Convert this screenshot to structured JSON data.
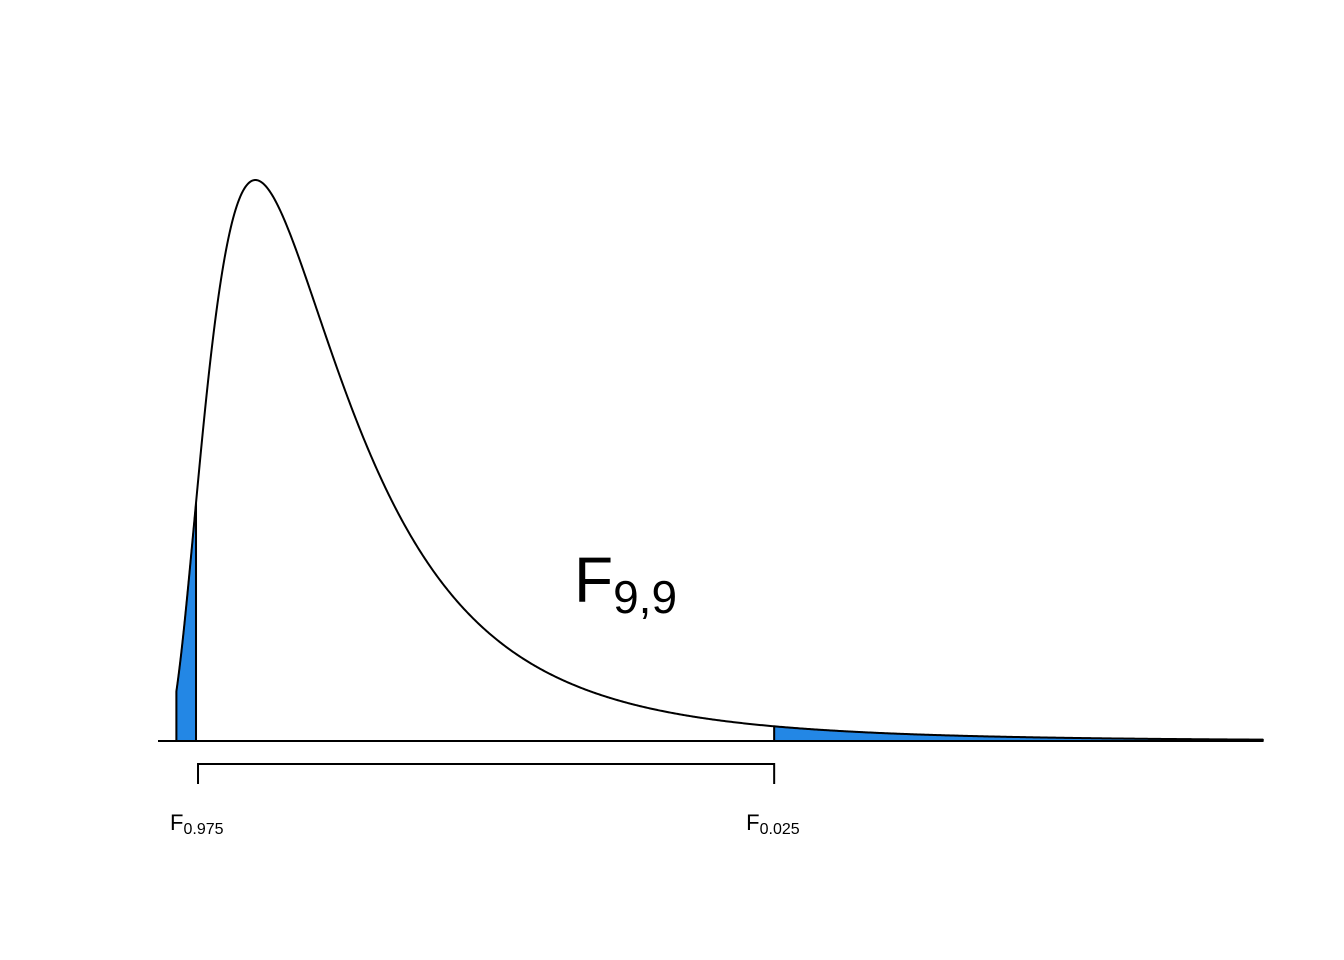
{
  "chart_data": {
    "type": "area",
    "title": "",
    "xlabel": "",
    "ylabel": "",
    "distribution": {
      "name": "F",
      "df1": 9,
      "df2": 9,
      "label_main": "F",
      "label_sub": "9,9"
    },
    "xlim": [
      0.0,
      7.22
    ],
    "ylim": [
      0.0,
      0.68
    ],
    "axes_visible": false,
    "grid": false,
    "legend": "none",
    "shaded_tails": [
      {
        "name": "lower",
        "from": 0.0,
        "to": 0.2484,
        "probability": 0.025
      },
      {
        "name": "upper",
        "from": 4.026,
        "to": 7.22,
        "probability": 0.025
      }
    ],
    "critical_values": [
      {
        "label_main": "F",
        "label_sub": "0.975",
        "x": 0.2484
      },
      {
        "label_main": "F",
        "label_sub": "0.025",
        "x": 4.026
      }
    ],
    "colors": {
      "tail_fill": "#2387e5",
      "curve": "#000000",
      "background": "#ffffff"
    }
  }
}
